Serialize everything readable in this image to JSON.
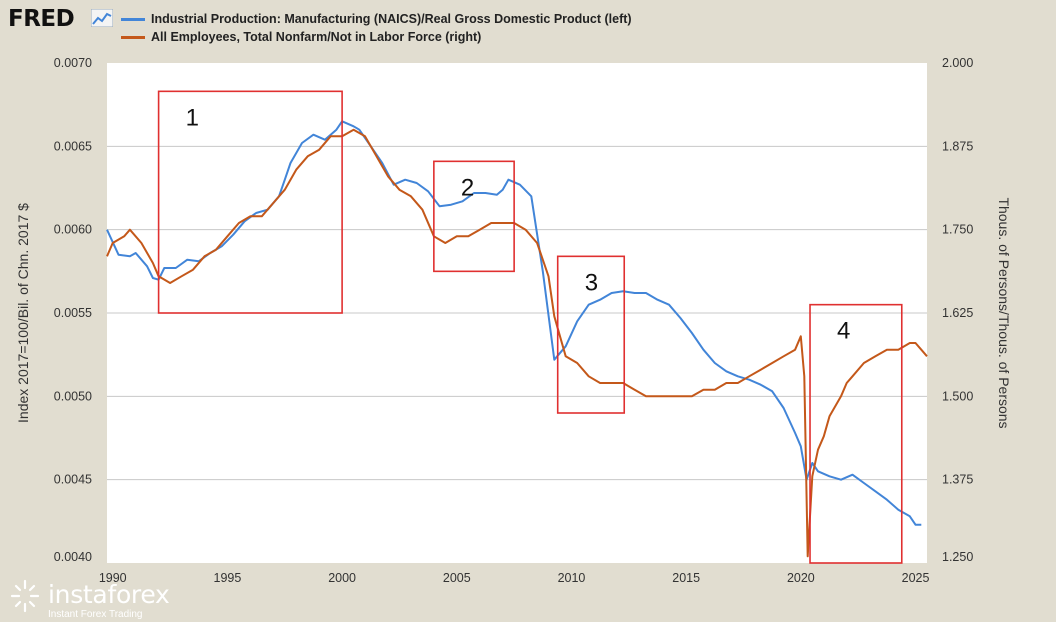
{
  "header": {
    "logo_text": "FRED",
    "logo_icon": "line-chart-icon"
  },
  "legend": [
    {
      "label": "Industrial Production: Manufacturing (NAICS)/Real Gross Domestic Product (left)",
      "color": "#4285d8"
    },
    {
      "label": "All Employees, Total Nonfarm/Not in Labor Force (right)",
      "color": "#c4581a"
    }
  ],
  "watermark": {
    "name": "instaforex",
    "tagline": "Instant Forex Trading"
  },
  "chart_data": {
    "type": "line",
    "xlim": [
      1989.75,
      2025.5
    ],
    "x_ticks": [
      1990,
      1995,
      2000,
      2005,
      2010,
      2015,
      2020,
      2025
    ],
    "x_tick_labels": [
      "1990",
      "1995",
      "2000",
      "2005",
      "2010",
      "2015",
      "2020",
      "2025"
    ],
    "y_left": {
      "label": "Index 2017=100/Bil. of Chn. 2017 $",
      "lim": [
        0.004,
        0.007
      ],
      "ticks": [
        "0.0070",
        "0.0065",
        "0.0060",
        "0.0055",
        "0.0050",
        "0.0045",
        "0.0040"
      ]
    },
    "y_right": {
      "label": "Thous. of Persons/Thous. of Persons",
      "lim": [
        1.25,
        2.0
      ],
      "ticks": [
        "2.000",
        "1.875",
        "1.750",
        "1.625",
        "1.500",
        "1.375",
        "1.250"
      ]
    },
    "grid": true,
    "series": [
      {
        "name": "Industrial Production: Manufacturing (NAICS)/Real Gross Domestic Product (left)",
        "axis": "left",
        "color": "#4285d8",
        "x": [
          1989.75,
          1990.25,
          1990.75,
          1991.0,
          1991.5,
          1991.75,
          1992.0,
          1992.25,
          1992.75,
          1993.25,
          1993.75,
          1994.25,
          1994.75,
          1995.25,
          1995.75,
          1996.25,
          1996.75,
          1997.25,
          1997.5,
          1997.75,
          1998.25,
          1998.75,
          1999.25,
          1999.75,
          2000.0,
          2000.5,
          2000.75,
          2001.25,
          2001.75,
          2002.25,
          2002.75,
          2003.25,
          2003.75,
          2004.25,
          2004.75,
          2005.25,
          2005.75,
          2006.25,
          2006.75,
          2007.0,
          2007.25,
          2007.75,
          2008.25,
          2008.75,
          2009.25,
          2009.75,
          2010.25,
          2010.75,
          2011.25,
          2011.75,
          2012.25,
          2012.75,
          2013.25,
          2013.75,
          2014.25,
          2014.75,
          2015.25,
          2015.75,
          2016.25,
          2016.75,
          2017.25,
          2017.75,
          2018.25,
          2018.75,
          2019.25,
          2019.75,
          2020.0,
          2020.25,
          2020.5,
          2020.75,
          2021.25,
          2021.75,
          2022.25,
          2022.75,
          2023.25,
          2023.75,
          2024.25,
          2024.75,
          2025.0,
          2025.25
        ],
        "values": [
          0.006,
          0.00585,
          0.00584,
          0.00586,
          0.00578,
          0.00571,
          0.0057,
          0.00577,
          0.00577,
          0.00582,
          0.00581,
          0.00586,
          0.0059,
          0.00597,
          0.00605,
          0.0061,
          0.00612,
          0.0062,
          0.0063,
          0.0064,
          0.00652,
          0.00657,
          0.00654,
          0.0066,
          0.00665,
          0.00662,
          0.0066,
          0.0065,
          0.0064,
          0.00627,
          0.0063,
          0.00628,
          0.00623,
          0.00614,
          0.00615,
          0.00617,
          0.00622,
          0.00622,
          0.00621,
          0.00624,
          0.0063,
          0.00627,
          0.0062,
          0.00575,
          0.00522,
          0.0053,
          0.00545,
          0.00555,
          0.00558,
          0.00562,
          0.00563,
          0.00562,
          0.00562,
          0.00558,
          0.00555,
          0.00547,
          0.00538,
          0.00528,
          0.0052,
          0.00515,
          0.00512,
          0.0051,
          0.00507,
          0.00503,
          0.00493,
          0.00478,
          0.0047,
          0.0045,
          0.0046,
          0.00455,
          0.00452,
          0.0045,
          0.00453,
          0.00448,
          0.00443,
          0.00438,
          0.00432,
          0.00428,
          0.00423,
          0.00423
        ]
      },
      {
        "name": "All Employees, Total Nonfarm/Not in Labor Force (right)",
        "axis": "right",
        "color": "#c4581a",
        "x": [
          1989.75,
          1990.0,
          1990.5,
          1990.75,
          1991.25,
          1991.75,
          1992.0,
          1992.5,
          1993.0,
          1993.5,
          1994.0,
          1994.5,
          1995.0,
          1995.5,
          1996.0,
          1996.5,
          1997.0,
          1997.5,
          1998.0,
          1998.5,
          1999.0,
          1999.5,
          2000.0,
          2000.5,
          2001.0,
          2001.5,
          2002.0,
          2002.5,
          2003.0,
          2003.5,
          2004.0,
          2004.5,
          2005.0,
          2005.5,
          2006.0,
          2006.5,
          2007.0,
          2007.5,
          2008.0,
          2008.5,
          2009.0,
          2009.25,
          2009.75,
          2010.25,
          2010.75,
          2011.25,
          2011.75,
          2012.25,
          2012.75,
          2013.25,
          2013.75,
          2014.25,
          2014.75,
          2015.25,
          2015.75,
          2016.25,
          2016.75,
          2017.25,
          2017.75,
          2018.25,
          2018.75,
          2019.25,
          2019.75,
          2020.0,
          2020.15,
          2020.3,
          2020.5,
          2020.75,
          2021.0,
          2021.25,
          2021.75,
          2022.0,
          2022.25,
          2022.75,
          2023.25,
          2023.75,
          2024.25,
          2024.75,
          2025.0,
          2025.25,
          2025.5
        ],
        "values": [
          1.71,
          1.73,
          1.74,
          1.75,
          1.73,
          1.7,
          1.68,
          1.67,
          1.68,
          1.69,
          1.71,
          1.72,
          1.74,
          1.76,
          1.77,
          1.77,
          1.79,
          1.81,
          1.84,
          1.86,
          1.87,
          1.89,
          1.89,
          1.9,
          1.89,
          1.86,
          1.83,
          1.81,
          1.8,
          1.78,
          1.74,
          1.73,
          1.74,
          1.74,
          1.75,
          1.76,
          1.76,
          1.76,
          1.75,
          1.73,
          1.68,
          1.62,
          1.56,
          1.55,
          1.53,
          1.52,
          1.52,
          1.52,
          1.51,
          1.5,
          1.5,
          1.5,
          1.5,
          1.5,
          1.51,
          1.51,
          1.52,
          1.52,
          1.53,
          1.54,
          1.55,
          1.56,
          1.57,
          1.59,
          1.53,
          1.26,
          1.38,
          1.42,
          1.44,
          1.47,
          1.5,
          1.52,
          1.53,
          1.55,
          1.56,
          1.57,
          1.57,
          1.58,
          1.58,
          1.57,
          1.56
        ]
      }
    ],
    "annotations": [
      {
        "label": "1",
        "x_range": [
          1992.0,
          2000.0
        ],
        "y_left_range": [
          0.0055,
          0.00683
        ]
      },
      {
        "label": "2",
        "x_range": [
          2004.0,
          2007.5
        ],
        "y_left_range": [
          0.00575,
          0.00641
        ]
      },
      {
        "label": "3",
        "x_range": [
          2009.4,
          2012.3
        ],
        "y_left_range": [
          0.0049,
          0.00584
        ]
      },
      {
        "label": "4",
        "x_range": [
          2020.4,
          2024.4
        ],
        "y_left_range": [
          0.004,
          0.00555
        ]
      }
    ]
  }
}
